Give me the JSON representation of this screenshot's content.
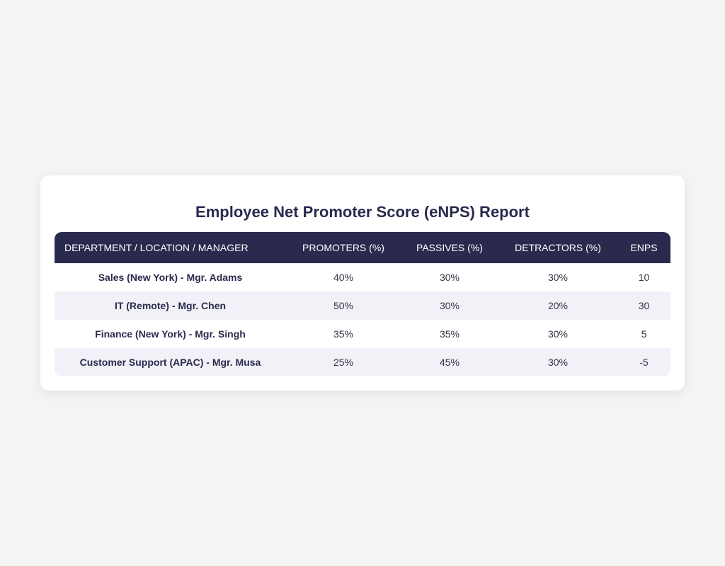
{
  "report": {
    "title": "Employee Net Promoter Score (eNPS) Report"
  },
  "table": {
    "headers": {
      "department": "Department / Location / Manager",
      "promoters": "Promoters (%)",
      "passives": "Passives (%)",
      "detractors": "Detractors (%)",
      "enps": "eNPS"
    },
    "rows": [
      {
        "department": "Sales (New York) - Mgr. Adams",
        "promoters": "40%",
        "passives": "30%",
        "detractors": "30%",
        "enps": "10"
      },
      {
        "department": "IT (Remote) - Mgr. Chen",
        "promoters": "50%",
        "passives": "30%",
        "detractors": "20%",
        "enps": "30"
      },
      {
        "department": "Finance (New York) - Mgr. Singh",
        "promoters": "35%",
        "passives": "35%",
        "detractors": "30%",
        "enps": "5"
      },
      {
        "department": "Customer Support (APAC) - Mgr. Musa",
        "promoters": "25%",
        "passives": "45%",
        "detractors": "30%",
        "enps": "-5"
      }
    ]
  },
  "colors": {
    "header_bg": "#2a2a4e",
    "stripe_bg": "#f1f1f7",
    "page_bg": "#f4f4f5"
  }
}
